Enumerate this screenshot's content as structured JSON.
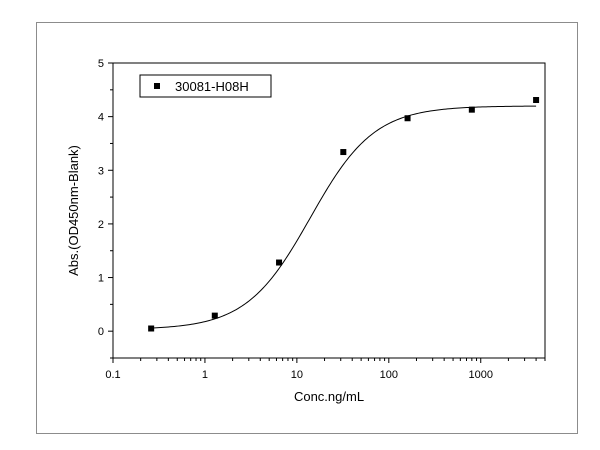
{
  "chart_data": {
    "type": "scatter",
    "title": "",
    "xlabel": "Conc.ng/mL",
    "ylabel": "Abs.(OD450nm-Blank)",
    "x_scale": "log",
    "xlim": [
      0.1,
      5000
    ],
    "ylim": [
      -0.5,
      5
    ],
    "x_ticks": [
      0.1,
      1,
      10,
      100,
      1000
    ],
    "x_tick_labels": [
      "0.1",
      "1",
      "10",
      "100",
      "1000"
    ],
    "y_ticks": [
      0,
      1,
      2,
      3,
      4,
      5
    ],
    "y_tick_labels": [
      "0",
      "1",
      "2",
      "3",
      "4",
      "5"
    ],
    "grid": false,
    "legend_position": "top-left",
    "series": [
      {
        "name": "30081-H08H",
        "marker": "square",
        "color": "#000000",
        "x": [
          0.26,
          1.28,
          6.4,
          32,
          160,
          800,
          4000
        ],
        "y": [
          0.05,
          0.29,
          1.28,
          3.34,
          3.97,
          4.13,
          4.31
        ]
      }
    ],
    "fit_curve": {
      "type": "4PL",
      "bottom": 0.03,
      "top": 4.2,
      "ec50": 14,
      "hill": 1.25,
      "x_range": [
        0.26,
        4000
      ],
      "color": "#000000"
    }
  }
}
